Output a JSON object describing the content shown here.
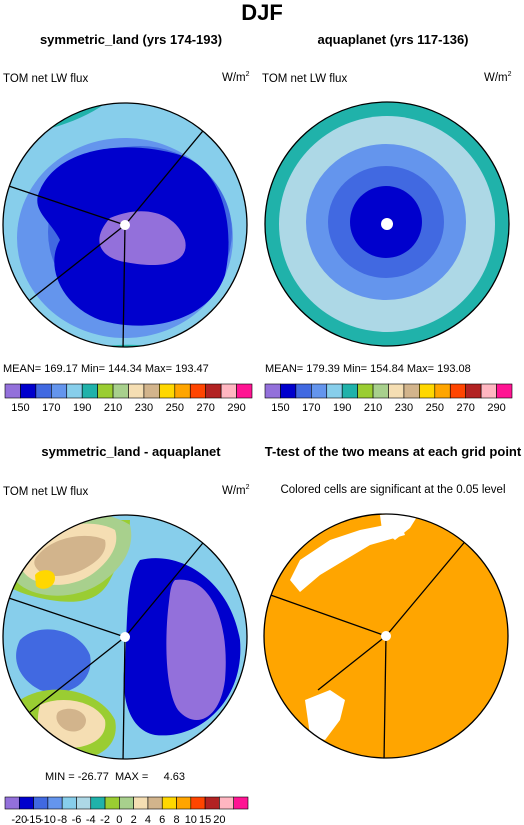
{
  "figure": {
    "title": "DJF",
    "panels": [
      {
        "title": "symmetric_land (yrs 174-193)",
        "left_label": "TOM net LW flux",
        "units": "W/m",
        "units_sup": "2",
        "stats": "MEAN= 169.17   Min= 144.34   Max= 193.47"
      },
      {
        "title": "aquaplanet (yrs 117-136)",
        "left_label": "TOM net LW flux",
        "units": "W/m",
        "units_sup": "2",
        "stats": "MEAN= 179.39   Min= 154.84   Max= 193.08"
      },
      {
        "title": "symmetric_land - aquaplanet",
        "left_label": "TOM net LW flux",
        "units": "W/m",
        "units_sup": "2",
        "stats": "MIN = -26.77  MAX =     4.63"
      },
      {
        "title": "T-test of the two means at each grid point",
        "subtitle": "Colored cells are significant at the 0.05 level"
      }
    ]
  },
  "chart_data": [
    {
      "type": "heatmap",
      "title": "symmetric_land (yrs 174-193)",
      "variable": "TOM net LW flux",
      "units": "W/m2",
      "projection": "polar",
      "stats": {
        "mean": 169.17,
        "min": 144.34,
        "max": 193.47
      },
      "colorbar": {
        "colors": [
          "#9370DB",
          "#0000CD",
          "#4169E1",
          "#6495ED",
          "#87CEEB",
          "#20B2AA",
          "#9ACD32",
          "#A8D08D",
          "#F5DEB3",
          "#D2B48C",
          "#FFD700",
          "#FFA500",
          "#FF4500",
          "#B22222",
          "#FFB6C1",
          "#FF1493"
        ],
        "tick_labels": [
          "150",
          "170",
          "190",
          "210",
          "230",
          "250",
          "270",
          "290"
        ]
      }
    },
    {
      "type": "heatmap",
      "title": "aquaplanet (yrs 117-136)",
      "variable": "TOM net LW flux",
      "units": "W/m2",
      "projection": "polar",
      "stats": {
        "mean": 179.39,
        "min": 154.84,
        "max": 193.08
      },
      "colorbar": {
        "colors": [
          "#9370DB",
          "#0000CD",
          "#4169E1",
          "#6495ED",
          "#87CEEB",
          "#20B2AA",
          "#9ACD32",
          "#A8D08D",
          "#F5DEB3",
          "#D2B48C",
          "#FFD700",
          "#FFA500",
          "#FF4500",
          "#B22222",
          "#FFB6C1",
          "#FF1493"
        ],
        "tick_labels": [
          "150",
          "170",
          "190",
          "210",
          "230",
          "250",
          "270",
          "290"
        ]
      }
    },
    {
      "type": "heatmap",
      "title": "symmetric_land - aquaplanet",
      "variable": "TOM net LW flux",
      "units": "W/m2",
      "projection": "polar",
      "stats": {
        "min": -26.77,
        "max": 4.63
      },
      "colorbar": {
        "colors": [
          "#9370DB",
          "#0000CD",
          "#4169E1",
          "#6495ED",
          "#87CEEB",
          "#ADD8E6",
          "#20B2AA",
          "#9ACD32",
          "#A8D08D",
          "#F5DEB3",
          "#D2B48C",
          "#FFD700",
          "#FFA500",
          "#FF4500",
          "#B22222",
          "#FFB6C1",
          "#FF1493"
        ],
        "tick_labels": [
          "-20",
          "-15",
          "-10",
          "-8",
          "-6",
          "-4",
          "-2",
          "0",
          "2",
          "4",
          "6",
          "8",
          "10",
          "15",
          "20"
        ]
      }
    },
    {
      "type": "heatmap",
      "title": "T-test of the two means at each grid point",
      "subtitle": "Colored cells are significant at the 0.05 level",
      "projection": "polar",
      "significant_color": "#FFA500"
    }
  ]
}
